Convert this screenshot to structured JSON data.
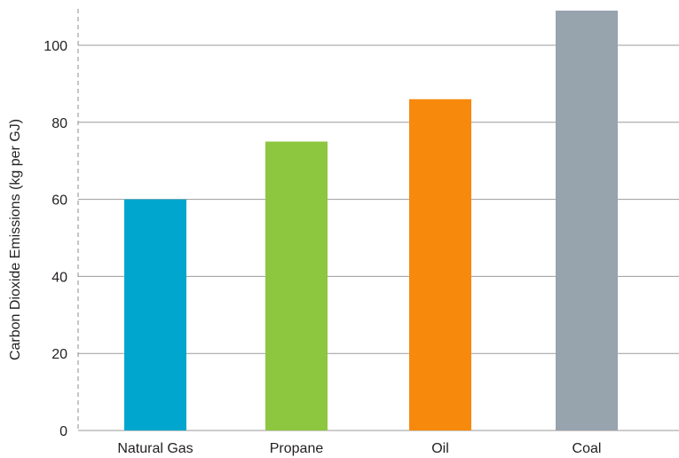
{
  "chart_data": {
    "type": "bar",
    "categories": [
      "Natural Gas",
      "Propane",
      "Oil",
      "Coal"
    ],
    "values": [
      60,
      75,
      86,
      109
    ],
    "colors": [
      "#00a6cd",
      "#8dc63f",
      "#f7890d",
      "#97a3ad"
    ],
    "title": "",
    "xlabel": "",
    "ylabel": "Carbon Dioxide Emissions (kg per GJ)",
    "yticks": [
      "0",
      "20",
      "40",
      "60",
      "80",
      "100"
    ],
    "ylim": [
      0,
      100
    ],
    "grid": true,
    "legend": "none"
  }
}
